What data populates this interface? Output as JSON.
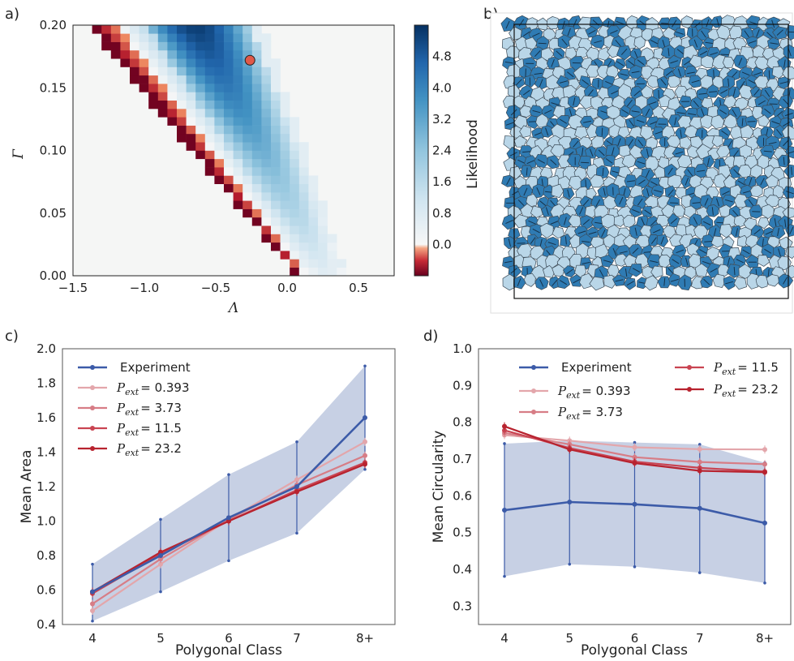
{
  "panel_letters": [
    "a)",
    "b)",
    "c)",
    "d)"
  ],
  "colors": {
    "experiment": "#3c5ba8",
    "p0393": "#e3a6ab",
    "p373": "#d77d86",
    "p115": "#c94452",
    "p232": "#b8232f",
    "band": "#c4cde3",
    "cell_dark": "#2f7bb3",
    "cell_light": "#b9d6e8",
    "marker": "#e0594a"
  },
  "chart_data": [
    {
      "panel": "a)",
      "type": "heatmap",
      "xlabel": "Λ",
      "ylabel": "Γ",
      "xlim": [
        -1.5,
        0.75
      ],
      "ylim": [
        0.0,
        0.2
      ],
      "xticks": [
        "−1.5",
        "−1.0",
        "−0.5",
        "0.0",
        "0.5"
      ],
      "yticks": [
        "0.00",
        "0.05",
        "0.10",
        "0.15",
        "0.20"
      ],
      "colorbar": {
        "label": "Likelihood",
        "range": [
          -0.8,
          5.6
        ],
        "ticks": [
          "0.0",
          "0.8",
          "1.6",
          "2.4",
          "3.2",
          "4.0",
          "4.8"
        ]
      },
      "grid": {
        "cols": 34,
        "rows": 30
      },
      "marked_point": {
        "lambda": -0.26,
        "gamma": 0.172
      }
    },
    {
      "panel": "b)",
      "type": "other",
      "description_colors": [
        "cell_dark",
        "cell_light"
      ]
    },
    {
      "panel": "c)",
      "type": "line",
      "xlabel": "Polygonal Class",
      "ylabel": "Mean Area",
      "categories": [
        "4",
        "5",
        "6",
        "7",
        "8+"
      ],
      "ylim": [
        0.4,
        2.0
      ],
      "yticks": [
        "0.4",
        "0.6",
        "0.8",
        "1.0",
        "1.2",
        "1.4",
        "1.6",
        "1.8",
        "2.0"
      ],
      "legend": "top-left",
      "series": [
        {
          "name": "Experiment",
          "values": [
            0.59,
            0.8,
            1.02,
            1.2,
            1.6
          ],
          "err_low": [
            0.42,
            0.59,
            0.77,
            0.93,
            1.3
          ],
          "err_high": [
            0.75,
            1.01,
            1.27,
            1.46,
            1.9
          ]
        },
        {
          "name": "P_ext = 0.393",
          "values": [
            0.48,
            0.75,
            1.01,
            1.24,
            1.46
          ]
        },
        {
          "name": "P_ext = 3.73",
          "values": [
            0.52,
            0.78,
            1.01,
            1.21,
            1.38
          ]
        },
        {
          "name": "P_ext = 11.5",
          "values": [
            0.58,
            0.81,
            1.0,
            1.18,
            1.34
          ]
        },
        {
          "name": "P_ext = 23.2",
          "values": [
            0.59,
            0.82,
            1.0,
            1.17,
            1.33
          ]
        }
      ]
    },
    {
      "panel": "d)",
      "type": "line",
      "xlabel": "Polygonal Class",
      "ylabel": "Mean Circularity",
      "categories": [
        "4",
        "5",
        "6",
        "7",
        "8+"
      ],
      "ylim": [
        0.25,
        1.0
      ],
      "yticks": [
        "0.3",
        "0.4",
        "0.5",
        "0.6",
        "0.7",
        "0.8",
        "0.9",
        "1.0"
      ],
      "legend": "top",
      "series": [
        {
          "name": "Experiment",
          "values": [
            0.561,
            0.583,
            0.577,
            0.566,
            0.526
          ],
          "err_low": [
            0.381,
            0.414,
            0.407,
            0.391,
            0.363
          ],
          "err_high": [
            0.742,
            0.75,
            0.745,
            0.74,
            0.69
          ]
        },
        {
          "name": "P_ext = 0.393",
          "values": [
            0.765,
            0.75,
            0.732,
            0.727,
            0.726
          ]
        },
        {
          "name": "P_ext = 3.73",
          "values": [
            0.771,
            0.74,
            0.705,
            0.692,
            0.686
          ]
        },
        {
          "name": "P_ext = 11.5",
          "values": [
            0.778,
            0.73,
            0.693,
            0.676,
            0.666
          ]
        },
        {
          "name": "P_ext = 23.2",
          "values": [
            0.789,
            0.726,
            0.689,
            0.668,
            0.664
          ]
        }
      ]
    }
  ],
  "legend_c": [
    {
      "sym": "",
      "text": "Experiment",
      "color": "experiment"
    },
    {
      "sym": "P",
      "sub": "ext",
      "val": "= 0.393",
      "color": "p0393"
    },
    {
      "sym": "P",
      "sub": "ext",
      "val": "= 3.73",
      "color": "p373"
    },
    {
      "sym": "P",
      "sub": "ext",
      "val": "= 11.5",
      "color": "p115"
    },
    {
      "sym": "P",
      "sub": "ext",
      "val": "= 23.2",
      "color": "p232"
    }
  ],
  "legend_d": [
    {
      "sym": "",
      "text": "Experiment",
      "color": "experiment"
    },
    {
      "sym": "P",
      "sub": "ext",
      "val": "= 0.393",
      "color": "p0393"
    },
    {
      "sym": "P",
      "sub": "ext",
      "val": "= 3.73",
      "color": "p373"
    },
    {
      "sym": "P",
      "sub": "ext",
      "val": "= 11.5",
      "color": "p115"
    },
    {
      "sym": "P",
      "sub": "ext",
      "val": "= 23.2",
      "color": "p232"
    }
  ]
}
